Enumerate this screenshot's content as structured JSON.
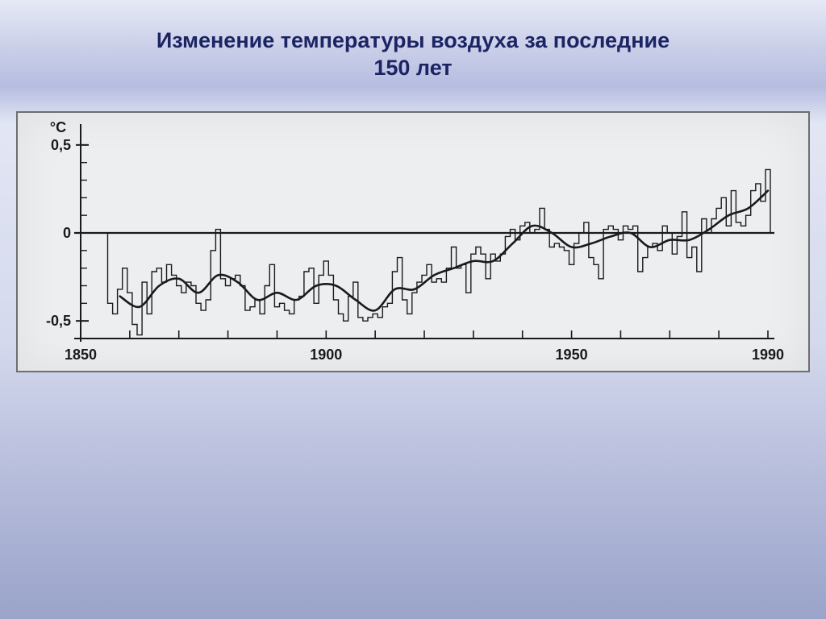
{
  "title_line1": "Изменение температуры воздуха за последние",
  "title_line2": "150 лет",
  "chart": {
    "type": "line+step",
    "background_color": "#eceef0",
    "border_color": "#6e6e6e",
    "axis_color": "#1a1a1a",
    "line_color": "#1a1a1a",
    "step_stroke_width": 1.4,
    "smooth_stroke_width": 2.6,
    "y_unit_label": "°C",
    "y_ticks": [
      {
        "value": 0.5,
        "label": "0,5"
      },
      {
        "value": 0,
        "label": "0"
      },
      {
        "value": -0.5,
        "label": "-0,5"
      }
    ],
    "x_ticks": [
      {
        "value": 1850,
        "label": "1850"
      },
      {
        "value": 1900,
        "label": "1900"
      },
      {
        "value": 1950,
        "label": "1950"
      },
      {
        "value": 1990,
        "label": "1990"
      }
    ],
    "x_minor_step": 10,
    "y_minor_step": 0.1,
    "ylim": [
      -0.6,
      0.6
    ],
    "xlim": [
      1850,
      1990
    ],
    "axis_label_fontsize": 18,
    "tick_label_fontsize": 18,
    "annual_step_series": [
      {
        "year": 1856,
        "v": -0.4
      },
      {
        "year": 1857,
        "v": -0.46
      },
      {
        "year": 1858,
        "v": -0.32
      },
      {
        "year": 1859,
        "v": -0.2
      },
      {
        "year": 1860,
        "v": -0.34
      },
      {
        "year": 1861,
        "v": -0.52
      },
      {
        "year": 1862,
        "v": -0.58
      },
      {
        "year": 1863,
        "v": -0.28
      },
      {
        "year": 1864,
        "v": -0.46
      },
      {
        "year": 1865,
        "v": -0.22
      },
      {
        "year": 1866,
        "v": -0.2
      },
      {
        "year": 1867,
        "v": -0.28
      },
      {
        "year": 1868,
        "v": -0.18
      },
      {
        "year": 1869,
        "v": -0.24
      },
      {
        "year": 1870,
        "v": -0.3
      },
      {
        "year": 1871,
        "v": -0.34
      },
      {
        "year": 1872,
        "v": -0.28
      },
      {
        "year": 1873,
        "v": -0.3
      },
      {
        "year": 1874,
        "v": -0.4
      },
      {
        "year": 1875,
        "v": -0.44
      },
      {
        "year": 1876,
        "v": -0.38
      },
      {
        "year": 1877,
        "v": -0.1
      },
      {
        "year": 1878,
        "v": 0.02
      },
      {
        "year": 1879,
        "v": -0.26
      },
      {
        "year": 1880,
        "v": -0.3
      },
      {
        "year": 1881,
        "v": -0.26
      },
      {
        "year": 1882,
        "v": -0.24
      },
      {
        "year": 1883,
        "v": -0.3
      },
      {
        "year": 1884,
        "v": -0.44
      },
      {
        "year": 1885,
        "v": -0.42
      },
      {
        "year": 1886,
        "v": -0.38
      },
      {
        "year": 1887,
        "v": -0.46
      },
      {
        "year": 1888,
        "v": -0.3
      },
      {
        "year": 1889,
        "v": -0.18
      },
      {
        "year": 1890,
        "v": -0.42
      },
      {
        "year": 1891,
        "v": -0.4
      },
      {
        "year": 1892,
        "v": -0.44
      },
      {
        "year": 1893,
        "v": -0.46
      },
      {
        "year": 1894,
        "v": -0.38
      },
      {
        "year": 1895,
        "v": -0.36
      },
      {
        "year": 1896,
        "v": -0.22
      },
      {
        "year": 1897,
        "v": -0.2
      },
      {
        "year": 1898,
        "v": -0.4
      },
      {
        "year": 1899,
        "v": -0.24
      },
      {
        "year": 1900,
        "v": -0.16
      },
      {
        "year": 1901,
        "v": -0.24
      },
      {
        "year": 1902,
        "v": -0.38
      },
      {
        "year": 1903,
        "v": -0.46
      },
      {
        "year": 1904,
        "v": -0.5
      },
      {
        "year": 1905,
        "v": -0.36
      },
      {
        "year": 1906,
        "v": -0.28
      },
      {
        "year": 1907,
        "v": -0.48
      },
      {
        "year": 1908,
        "v": -0.5
      },
      {
        "year": 1909,
        "v": -0.48
      },
      {
        "year": 1910,
        "v": -0.46
      },
      {
        "year": 1911,
        "v": -0.48
      },
      {
        "year": 1912,
        "v": -0.42
      },
      {
        "year": 1913,
        "v": -0.4
      },
      {
        "year": 1914,
        "v": -0.22
      },
      {
        "year": 1915,
        "v": -0.14
      },
      {
        "year": 1916,
        "v": -0.38
      },
      {
        "year": 1917,
        "v": -0.46
      },
      {
        "year": 1918,
        "v": -0.34
      },
      {
        "year": 1919,
        "v": -0.28
      },
      {
        "year": 1920,
        "v": -0.24
      },
      {
        "year": 1921,
        "v": -0.18
      },
      {
        "year": 1922,
        "v": -0.28
      },
      {
        "year": 1923,
        "v": -0.26
      },
      {
        "year": 1924,
        "v": -0.28
      },
      {
        "year": 1925,
        "v": -0.2
      },
      {
        "year": 1926,
        "v": -0.08
      },
      {
        "year": 1927,
        "v": -0.2
      },
      {
        "year": 1928,
        "v": -0.18
      },
      {
        "year": 1929,
        "v": -0.34
      },
      {
        "year": 1930,
        "v": -0.12
      },
      {
        "year": 1931,
        "v": -0.08
      },
      {
        "year": 1932,
        "v": -0.12
      },
      {
        "year": 1933,
        "v": -0.26
      },
      {
        "year": 1934,
        "v": -0.12
      },
      {
        "year": 1935,
        "v": -0.16
      },
      {
        "year": 1936,
        "v": -0.12
      },
      {
        "year": 1937,
        "v": -0.02
      },
      {
        "year": 1938,
        "v": 0.02
      },
      {
        "year": 1939,
        "v": -0.04
      },
      {
        "year": 1940,
        "v": 0.04
      },
      {
        "year": 1941,
        "v": 0.06
      },
      {
        "year": 1942,
        "v": 0.0
      },
      {
        "year": 1943,
        "v": 0.02
      },
      {
        "year": 1944,
        "v": 0.14
      },
      {
        "year": 1945,
        "v": 0.02
      },
      {
        "year": 1946,
        "v": -0.08
      },
      {
        "year": 1947,
        "v": -0.06
      },
      {
        "year": 1948,
        "v": -0.08
      },
      {
        "year": 1949,
        "v": -0.1
      },
      {
        "year": 1950,
        "v": -0.18
      },
      {
        "year": 1951,
        "v": -0.06
      },
      {
        "year": 1952,
        "v": 0.0
      },
      {
        "year": 1953,
        "v": 0.06
      },
      {
        "year": 1954,
        "v": -0.14
      },
      {
        "year": 1955,
        "v": -0.18
      },
      {
        "year": 1956,
        "v": -0.26
      },
      {
        "year": 1957,
        "v": 0.02
      },
      {
        "year": 1958,
        "v": 0.04
      },
      {
        "year": 1959,
        "v": 0.02
      },
      {
        "year": 1960,
        "v": -0.04
      },
      {
        "year": 1961,
        "v": 0.04
      },
      {
        "year": 1962,
        "v": 0.02
      },
      {
        "year": 1963,
        "v": 0.04
      },
      {
        "year": 1964,
        "v": -0.22
      },
      {
        "year": 1965,
        "v": -0.14
      },
      {
        "year": 1966,
        "v": -0.08
      },
      {
        "year": 1967,
        "v": -0.06
      },
      {
        "year": 1968,
        "v": -0.1
      },
      {
        "year": 1969,
        "v": 0.04
      },
      {
        "year": 1970,
        "v": 0.0
      },
      {
        "year": 1971,
        "v": -0.12
      },
      {
        "year": 1972,
        "v": -0.02
      },
      {
        "year": 1973,
        "v": 0.12
      },
      {
        "year": 1974,
        "v": -0.14
      },
      {
        "year": 1975,
        "v": -0.08
      },
      {
        "year": 1976,
        "v": -0.22
      },
      {
        "year": 1977,
        "v": 0.08
      },
      {
        "year": 1978,
        "v": 0.0
      },
      {
        "year": 1979,
        "v": 0.08
      },
      {
        "year": 1980,
        "v": 0.14
      },
      {
        "year": 1981,
        "v": 0.2
      },
      {
        "year": 1982,
        "v": 0.04
      },
      {
        "year": 1983,
        "v": 0.24
      },
      {
        "year": 1984,
        "v": 0.06
      },
      {
        "year": 1985,
        "v": 0.04
      },
      {
        "year": 1986,
        "v": 0.1
      },
      {
        "year": 1987,
        "v": 0.24
      },
      {
        "year": 1988,
        "v": 0.28
      },
      {
        "year": 1989,
        "v": 0.18
      },
      {
        "year": 1990,
        "v": 0.36
      }
    ],
    "smooth_series": [
      {
        "year": 1858,
        "v": -0.36
      },
      {
        "year": 1862,
        "v": -0.42
      },
      {
        "year": 1866,
        "v": -0.3
      },
      {
        "year": 1870,
        "v": -0.26
      },
      {
        "year": 1874,
        "v": -0.34
      },
      {
        "year": 1878,
        "v": -0.24
      },
      {
        "year": 1882,
        "v": -0.28
      },
      {
        "year": 1886,
        "v": -0.38
      },
      {
        "year": 1890,
        "v": -0.34
      },
      {
        "year": 1894,
        "v": -0.38
      },
      {
        "year": 1898,
        "v": -0.3
      },
      {
        "year": 1902,
        "v": -0.3
      },
      {
        "year": 1906,
        "v": -0.38
      },
      {
        "year": 1910,
        "v": -0.44
      },
      {
        "year": 1914,
        "v": -0.32
      },
      {
        "year": 1918,
        "v": -0.32
      },
      {
        "year": 1922,
        "v": -0.24
      },
      {
        "year": 1926,
        "v": -0.2
      },
      {
        "year": 1930,
        "v": -0.16
      },
      {
        "year": 1934,
        "v": -0.16
      },
      {
        "year": 1938,
        "v": -0.06
      },
      {
        "year": 1942,
        "v": 0.04
      },
      {
        "year": 1946,
        "v": 0.0
      },
      {
        "year": 1950,
        "v": -0.08
      },
      {
        "year": 1954,
        "v": -0.06
      },
      {
        "year": 1958,
        "v": -0.02
      },
      {
        "year": 1962,
        "v": 0.0
      },
      {
        "year": 1966,
        "v": -0.08
      },
      {
        "year": 1970,
        "v": -0.04
      },
      {
        "year": 1974,
        "v": -0.04
      },
      {
        "year": 1978,
        "v": 0.02
      },
      {
        "year": 1982,
        "v": 0.1
      },
      {
        "year": 1986,
        "v": 0.14
      },
      {
        "year": 1990,
        "v": 0.24
      }
    ]
  }
}
